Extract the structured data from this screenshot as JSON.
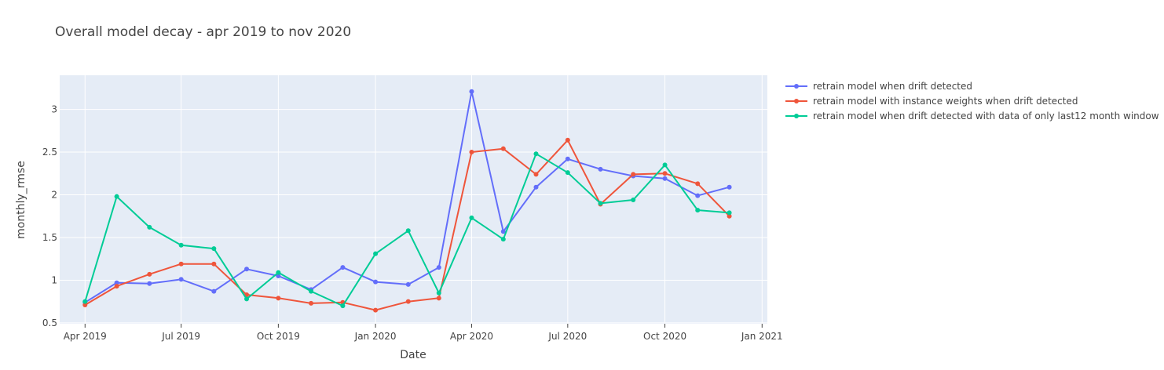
{
  "chart_data": {
    "type": "line",
    "title": "Overall model decay - apr 2019 to nov 2020",
    "xlabel": "Date",
    "ylabel": "monthly_rmse",
    "x_range": [
      "2019-03-08",
      "2021-01-06"
    ],
    "ylim": [
      0.49,
      3.4
    ],
    "x_ticks": [
      {
        "date": "2019-04-01",
        "label": "Apr 2019"
      },
      {
        "date": "2019-07-01",
        "label": "Jul 2019"
      },
      {
        "date": "2019-10-01",
        "label": "Oct 2019"
      },
      {
        "date": "2020-01-01",
        "label": "Jan 2020"
      },
      {
        "date": "2020-04-01",
        "label": "Apr 2020"
      },
      {
        "date": "2020-07-01",
        "label": "Jul 2020"
      },
      {
        "date": "2020-10-01",
        "label": "Oct 2020"
      },
      {
        "date": "2021-01-01",
        "label": "Jan 2021"
      }
    ],
    "y_ticks": [
      0.5,
      1,
      1.5,
      2,
      2.5,
      3
    ],
    "y_tick_labels": [
      "0.5",
      "1",
      "1.5",
      "2",
      "2.5",
      "3"
    ],
    "x": [
      "2019-04-01",
      "2019-05-01",
      "2019-06-01",
      "2019-07-01",
      "2019-08-01",
      "2019-09-01",
      "2019-10-01",
      "2019-11-01",
      "2019-12-01",
      "2020-01-01",
      "2020-02-01",
      "2020-03-01",
      "2020-04-01",
      "2020-05-01",
      "2020-06-01",
      "2020-07-01",
      "2020-08-01",
      "2020-09-01",
      "2020-10-01",
      "2020-11-01",
      "2020-12-01"
    ],
    "series": [
      {
        "name": "retrain model when drift detected",
        "color": "#636efa",
        "values": [
          0.74,
          0.97,
          0.96,
          1.01,
          0.87,
          1.13,
          1.05,
          0.89,
          1.15,
          0.98,
          0.95,
          1.15,
          3.21,
          1.57,
          2.09,
          2.42,
          2.3,
          2.22,
          2.19,
          1.99,
          2.09
        ]
      },
      {
        "name": "retrain model with instance weights when drift detected",
        "color": "#ef553b",
        "values": [
          0.71,
          0.93,
          1.07,
          1.19,
          1.19,
          0.83,
          0.79,
          0.73,
          0.74,
          0.65,
          0.75,
          0.79,
          2.5,
          2.54,
          2.24,
          2.64,
          1.89,
          2.24,
          2.25,
          2.13,
          1.75
        ]
      },
      {
        "name": "retrain model when drift detected with data of only last12 month window",
        "color": "#00cc96",
        "values": [
          0.75,
          1.98,
          1.62,
          1.41,
          1.37,
          0.78,
          1.09,
          0.87,
          0.7,
          1.31,
          1.58,
          0.85,
          1.73,
          1.48,
          2.48,
          2.26,
          1.9,
          1.94,
          2.35,
          1.82,
          1.79
        ]
      }
    ],
    "grid": true,
    "legend_position": "right",
    "plot_background": "#e5ecf6"
  }
}
